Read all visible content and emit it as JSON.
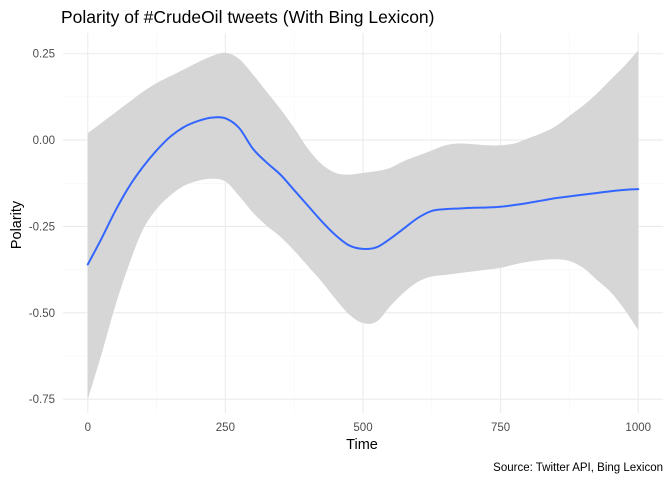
{
  "chart_data": {
    "type": "line",
    "title": "Polarity of #CrudeOil tweets (With Bing Lexicon)",
    "caption": "Source: Twitter API, Bing Lexicon",
    "xlabel": "Time",
    "ylabel": "Polarity",
    "xlim": [
      -45,
      1045
    ],
    "ylim": [
      -0.79,
      0.31
    ],
    "x_ticks": [
      0,
      250,
      500,
      750,
      1000
    ],
    "x_tick_labels": [
      "0",
      "250",
      "500",
      "750",
      "1000"
    ],
    "y_ticks": [
      -0.75,
      -0.5,
      -0.25,
      0,
      0.25
    ],
    "y_tick_labels": [
      "-0.75",
      "-0.50",
      "-0.25",
      "0.00",
      "0.25"
    ],
    "grid": true,
    "colors": {
      "line": "#3366ff",
      "ribbon": "#d6d6d6"
    },
    "series": [
      {
        "x": [
          0,
          25,
          50,
          75,
          100,
          125,
          150,
          175,
          200,
          225,
          250,
          275,
          300,
          325,
          350,
          375,
          400,
          425,
          450,
          475,
          500,
          525,
          550,
          575,
          600,
          625,
          650,
          675,
          700,
          725,
          750,
          775,
          800,
          825,
          850,
          875,
          900,
          925,
          950,
          975,
          1000
        ],
        "y": [
          -0.36,
          -0.285,
          -0.205,
          -0.135,
          -0.078,
          -0.03,
          0.01,
          0.038,
          0.055,
          0.065,
          0.063,
          0.035,
          -0.025,
          -0.065,
          -0.1,
          -0.145,
          -0.19,
          -0.235,
          -0.275,
          -0.305,
          -0.315,
          -0.31,
          -0.285,
          -0.255,
          -0.225,
          -0.205,
          -0.2,
          -0.198,
          -0.196,
          -0.195,
          -0.193,
          -0.188,
          -0.182,
          -0.175,
          -0.168,
          -0.163,
          -0.158,
          -0.153,
          -0.148,
          -0.144,
          -0.142
        ],
        "ymin": [
          -0.75,
          -0.62,
          -0.48,
          -0.36,
          -0.26,
          -0.2,
          -0.16,
          -0.132,
          -0.118,
          -0.112,
          -0.12,
          -0.162,
          -0.21,
          -0.248,
          -0.28,
          -0.32,
          -0.365,
          -0.41,
          -0.46,
          -0.505,
          -0.53,
          -0.525,
          -0.48,
          -0.44,
          -0.41,
          -0.395,
          -0.39,
          -0.385,
          -0.38,
          -0.375,
          -0.37,
          -0.36,
          -0.352,
          -0.347,
          -0.345,
          -0.35,
          -0.37,
          -0.405,
          -0.44,
          -0.49,
          -0.55
        ],
        "ymax": [
          0.02,
          0.05,
          0.08,
          0.11,
          0.14,
          0.165,
          0.185,
          0.205,
          0.225,
          0.243,
          0.253,
          0.235,
          0.19,
          0.14,
          0.09,
          0.035,
          -0.025,
          -0.07,
          -0.095,
          -0.1,
          -0.095,
          -0.09,
          -0.08,
          -0.06,
          -0.045,
          -0.03,
          -0.015,
          -0.01,
          -0.012,
          -0.015,
          -0.015,
          -0.01,
          0.005,
          0.02,
          0.04,
          0.07,
          0.1,
          0.135,
          0.175,
          0.215,
          0.26
        ]
      }
    ]
  }
}
